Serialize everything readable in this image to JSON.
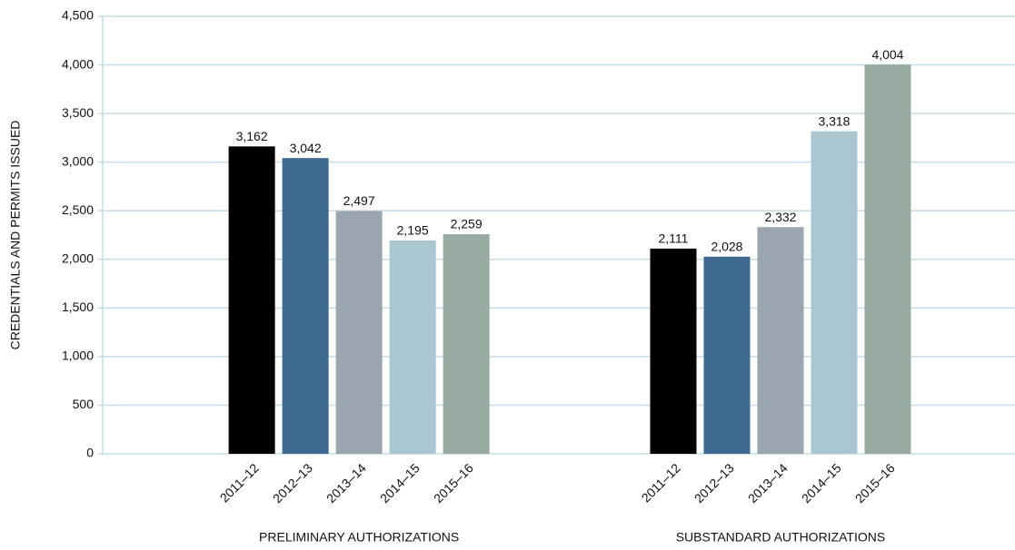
{
  "chart_data": {
    "type": "bar",
    "ylabel": "CREDENTIALS AND PERMITS ISSUED",
    "groups": [
      {
        "label": "PRELIMINARY AUTHORIZATIONS",
        "categories": [
          "2011–12",
          "2012–13",
          "2013–14",
          "2014–15",
          "2015–16"
        ],
        "values": [
          3162,
          3042,
          2497,
          2195,
          2259
        ],
        "value_labels": [
          "3,162",
          "3,042",
          "2,497",
          "2,195",
          "2,259"
        ]
      },
      {
        "label": "SUBSTANDARD AUTHORIZATIONS",
        "categories": [
          "2011–12",
          "2012–13",
          "2013–14",
          "2014–15",
          "2015–16"
        ],
        "values": [
          2111,
          2028,
          2332,
          3318,
          4004
        ],
        "value_labels": [
          "2,111",
          "2,028",
          "2,332",
          "3,318",
          "4,004"
        ]
      }
    ],
    "colors": [
      "#000000",
      "#3e6990",
      "#9aa5b0",
      "#a9c6d1",
      "#98aba3"
    ],
    "ylim": [
      0,
      4500
    ],
    "yticks": [
      0,
      500,
      {
        "value": 1000,
        "label": "1,000"
      },
      {
        "value": 1500,
        "label": "1,500"
      },
      {
        "value": 2000,
        "label": "2,000"
      },
      {
        "value": 2500,
        "label": "2,500"
      },
      {
        "value": 3000,
        "label": "3,000"
      },
      {
        "value": 3500,
        "label": "3,500"
      },
      {
        "value": 4000,
        "label": "4,000"
      },
      {
        "value": 4500,
        "label": "4,500"
      }
    ],
    "grid": true
  }
}
